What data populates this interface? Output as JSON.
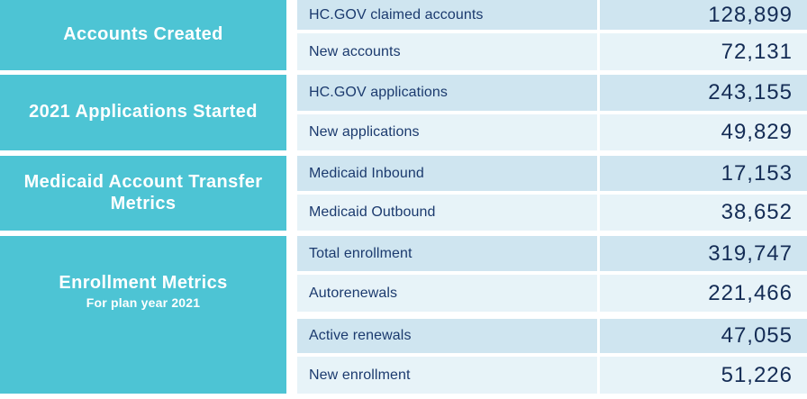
{
  "sections": [
    {
      "title": "Accounts Created"
    },
    {
      "title": "2021 Applications Started"
    },
    {
      "title": "Medicaid Account Transfer Metrics"
    },
    {
      "title": "Enrollment Metrics",
      "subtitle": "For plan year 2021"
    }
  ],
  "rows": [
    {
      "label": "HC.GOV claimed accounts",
      "value": "128,899"
    },
    {
      "label": "New accounts",
      "value": "72,131"
    },
    {
      "label": "HC.GOV applications",
      "value": "243,155"
    },
    {
      "label": "New applications",
      "value": "49,829"
    },
    {
      "label": "Medicaid Inbound",
      "value": "17,153"
    },
    {
      "label": "Medicaid Outbound",
      "value": "38,652"
    },
    {
      "label": "Total enrollment",
      "value": "319,747"
    },
    {
      "label": "Autorenewals",
      "value": "221,466"
    },
    {
      "label": "Active renewals",
      "value": "47,055"
    },
    {
      "label": "New enrollment",
      "value": "51,226"
    }
  ],
  "colors": {
    "accent_teal": "#4DC4D4",
    "row_shade_dark": "#CFE5F0",
    "row_shade_light": "#E7F3F8",
    "label_text": "#1B3A6E",
    "value_text": "#142C55",
    "section_title_text": "#FFFFFF"
  }
}
